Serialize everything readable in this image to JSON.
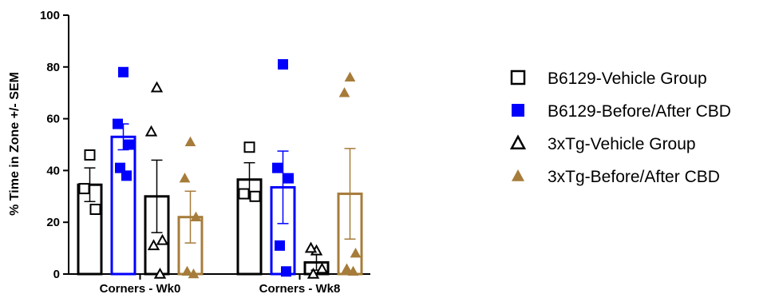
{
  "chart_data": {
    "type": "bar",
    "title": "",
    "xlabel": "",
    "ylabel": "% Time in Zone +/- SEM",
    "ylim": [
      0,
      100
    ],
    "yticks": [
      0,
      20,
      40,
      60,
      80,
      100
    ],
    "grid": false,
    "legend_position": "right",
    "categories": [
      "Corners - Wk0",
      "Corners - Wk8"
    ],
    "series": [
      {
        "name": "B6129-Vehicle Group",
        "marker": "open-square",
        "color": "#000000",
        "bar_fill": "none",
        "values": [
          34.5,
          36.5
        ],
        "sem": [
          6.5,
          6.5
        ],
        "points": [
          [
            46,
            33,
            25
          ],
          [
            49,
            31,
            30
          ]
        ]
      },
      {
        "name": "B6129-Before/After CBD",
        "marker": "filled-square",
        "color": "#0000ff",
        "bar_fill": "none",
        "values": [
          53,
          33.5
        ],
        "sem": [
          5,
          14
        ],
        "points": [
          [
            78,
            58,
            50,
            41,
            38
          ],
          [
            81,
            41,
            37,
            11,
            1
          ]
        ]
      },
      {
        "name": "3xTg-Vehicle Group",
        "marker": "open-triangle",
        "color": "#000000",
        "bar_fill": "none",
        "values": [
          30,
          4.5
        ],
        "sem": [
          14,
          3
        ],
        "points": [
          [
            72,
            55,
            13,
            11,
            0
          ],
          [
            9,
            10,
            2,
            0
          ]
        ]
      },
      {
        "name": "3xTg-Before/After CBD",
        "marker": "filled-triangle",
        "color": "#a67c3a",
        "bar_fill": "none",
        "values": [
          22,
          31
        ],
        "sem": [
          10,
          17.5
        ],
        "points": [
          [
            51,
            37,
            22,
            1,
            0
          ],
          [
            76,
            70,
            8,
            2,
            1
          ]
        ]
      }
    ]
  }
}
